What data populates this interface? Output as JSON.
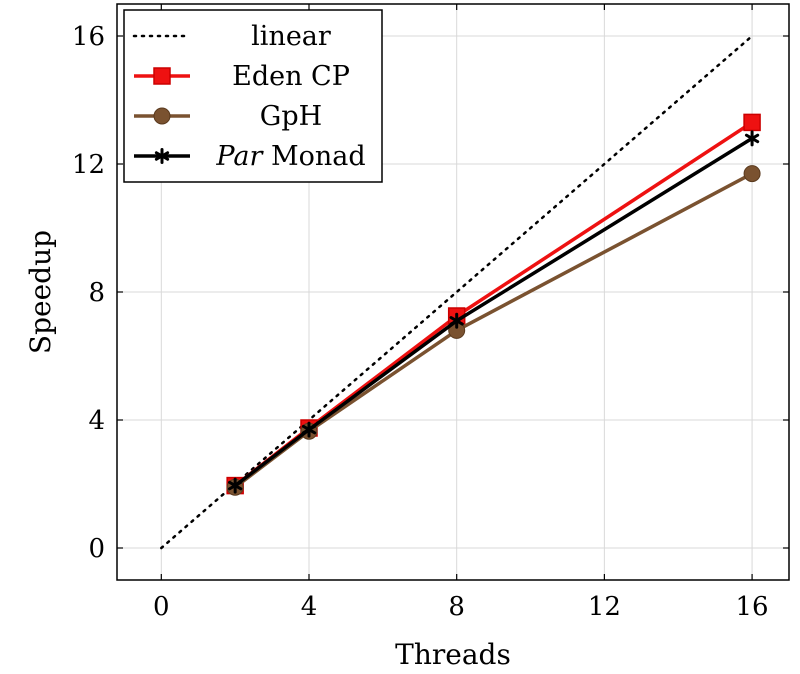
{
  "chart_data": {
    "type": "line",
    "title": "",
    "xlabel": "Threads",
    "ylabel": "Speedup",
    "xlim": [
      -1.2,
      17
    ],
    "ylim": [
      -1,
      17
    ],
    "xticks": [
      0,
      4,
      8,
      12,
      16
    ],
    "yticks": [
      0,
      4,
      8,
      12,
      16
    ],
    "grid": true,
    "legend_position": "top-left",
    "series": [
      {
        "name": "linear",
        "color": "#000000",
        "style": "dotted",
        "marker": "none",
        "x": [
          0,
          16
        ],
        "y": [
          0,
          16
        ]
      },
      {
        "name": "Eden CP",
        "color": "#ee1111",
        "style": "solid",
        "marker": "square",
        "x": [
          2,
          4,
          8,
          16
        ],
        "y": [
          1.95,
          3.75,
          7.25,
          13.3
        ]
      },
      {
        "name": "GpH",
        "color": "#7a5230",
        "style": "solid",
        "marker": "circle",
        "x": [
          2,
          4,
          8,
          16
        ],
        "y": [
          1.9,
          3.65,
          6.8,
          11.7
        ]
      },
      {
        "name": "Monad",
        "name_italic_prefix": "Par",
        "color": "#000000",
        "style": "solid",
        "marker": "star",
        "x": [
          2,
          4,
          8,
          16
        ],
        "y": [
          1.95,
          3.7,
          7.1,
          12.8
        ]
      }
    ]
  }
}
